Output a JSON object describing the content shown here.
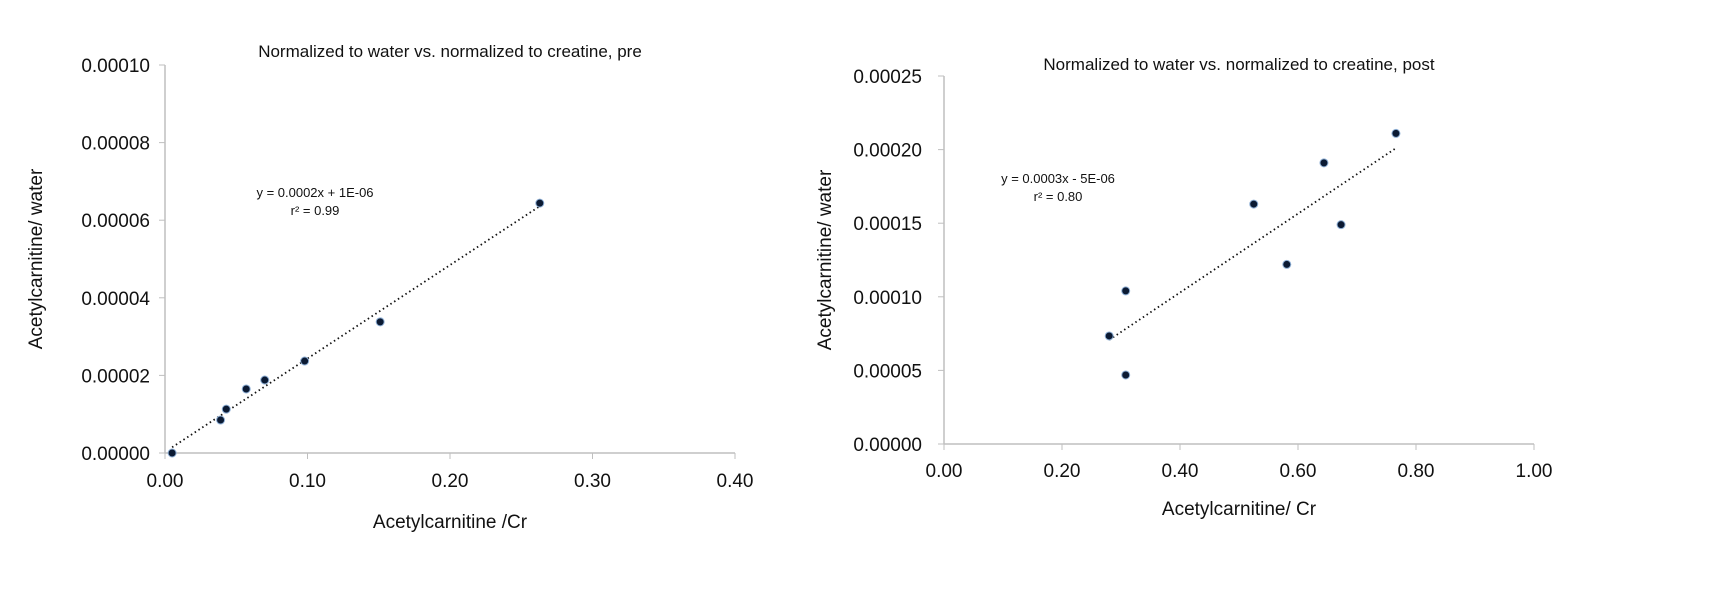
{
  "chart_data": [
    {
      "type": "scatter",
      "title": "Normalized to water vs. normalized to creatine, pre",
      "xlabel": "Acetylcarnitine /Cr",
      "ylabel": "Acetylcarnitine/ water",
      "xlim": [
        0,
        0.4
      ],
      "ylim": [
        0,
        0.0001
      ],
      "xticks": [
        "0.00",
        "0.10",
        "0.20",
        "0.30",
        "0.40"
      ],
      "yticks": [
        "0.00000",
        "0.00002",
        "0.00004",
        "0.00006",
        "0.00008",
        "0.00010"
      ],
      "grid": false,
      "points": [
        [
          0.005,
          0.0
        ],
        [
          0.039,
          8.5e-06
        ],
        [
          0.043,
          1.13e-05
        ],
        [
          0.057,
          1.65e-05
        ],
        [
          0.07,
          1.88e-05
        ],
        [
          0.098,
          2.37e-05
        ],
        [
          0.151,
          3.38e-05
        ],
        [
          0.263,
          6.44e-05
        ]
      ],
      "trendline": {
        "style": "dotted",
        "equation": "y = 0.0002x + 1E-06",
        "r2": "r² = 0.99"
      }
    },
    {
      "type": "scatter",
      "title": "Normalized to water vs. normalized to creatine, post",
      "xlabel": "Acetylcarnitine/ Cr",
      "ylabel": "Acetylcarnitine/ water",
      "xlim": [
        0,
        1.0
      ],
      "ylim": [
        0,
        0.00025
      ],
      "xticks": [
        "0.00",
        "0.20",
        "0.40",
        "0.60",
        "0.80",
        "1.00"
      ],
      "yticks": [
        "0.00000",
        "0.00005",
        "0.00010",
        "0.00015",
        "0.00020",
        "0.00025"
      ],
      "grid": false,
      "points": [
        [
          0.28,
          7.34e-05
        ],
        [
          0.308,
          0.000104
        ],
        [
          0.308,
          4.69e-05
        ],
        [
          0.525,
          0.000163
        ],
        [
          0.581,
          0.000122
        ],
        [
          0.644,
          0.000191
        ],
        [
          0.673,
          0.000149
        ],
        [
          0.766,
          0.000211
        ]
      ],
      "trendline": {
        "style": "dotted",
        "equation": "y = 0.0003x - 5E-06",
        "r2": "r² = 0.80"
      }
    }
  ],
  "colors": {
    "point": "#0b1a33",
    "axis": "#bfbfbf",
    "trend": "#111111"
  }
}
